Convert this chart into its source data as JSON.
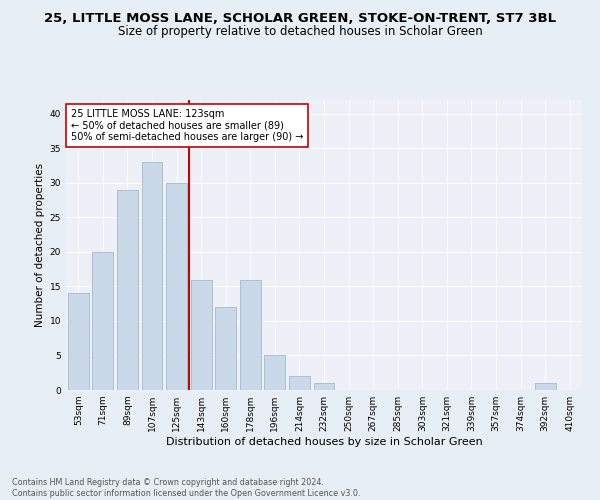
{
  "title": "25, LITTLE MOSS LANE, SCHOLAR GREEN, STOKE-ON-TRENT, ST7 3BL",
  "subtitle": "Size of property relative to detached houses in Scholar Green",
  "xlabel": "Distribution of detached houses by size in Scholar Green",
  "ylabel": "Number of detached properties",
  "footnote1": "Contains HM Land Registry data © Crown copyright and database right 2024.",
  "footnote2": "Contains public sector information licensed under the Open Government Licence v3.0.",
  "bar_labels": [
    "53sqm",
    "71sqm",
    "89sqm",
    "107sqm",
    "125sqm",
    "143sqm",
    "160sqm",
    "178sqm",
    "196sqm",
    "214sqm",
    "232sqm",
    "250sqm",
    "267sqm",
    "285sqm",
    "303sqm",
    "321sqm",
    "339sqm",
    "357sqm",
    "374sqm",
    "392sqm",
    "410sqm"
  ],
  "bar_values": [
    14,
    20,
    29,
    33,
    30,
    16,
    12,
    16,
    5,
    2,
    1,
    0,
    0,
    0,
    0,
    0,
    0,
    0,
    0,
    1,
    0
  ],
  "bar_color": "#c9d9e8",
  "bar_edgecolor": "#aabfd4",
  "vline_x": 4.5,
  "vline_color": "#cc0000",
  "annotation_text": "25 LITTLE MOSS LANE: 123sqm\n← 50% of detached houses are smaller (89)\n50% of semi-detached houses are larger (90) →",
  "annotation_box_edgecolor": "#cc0000",
  "annotation_box_facecolor": "#ffffff",
  "ylim": [
    0,
    42
  ],
  "yticks": [
    0,
    5,
    10,
    15,
    20,
    25,
    30,
    35,
    40
  ],
  "bg_color": "#e8eef5",
  "plot_bg_color": "#edf1f7",
  "grid_color": "#ffffff",
  "title_fontsize": 9.5,
  "subtitle_fontsize": 8.5,
  "ylabel_fontsize": 7.5,
  "xlabel_fontsize": 8,
  "tick_fontsize": 6.5,
  "annotation_fontsize": 7,
  "footnote_fontsize": 5.8
}
